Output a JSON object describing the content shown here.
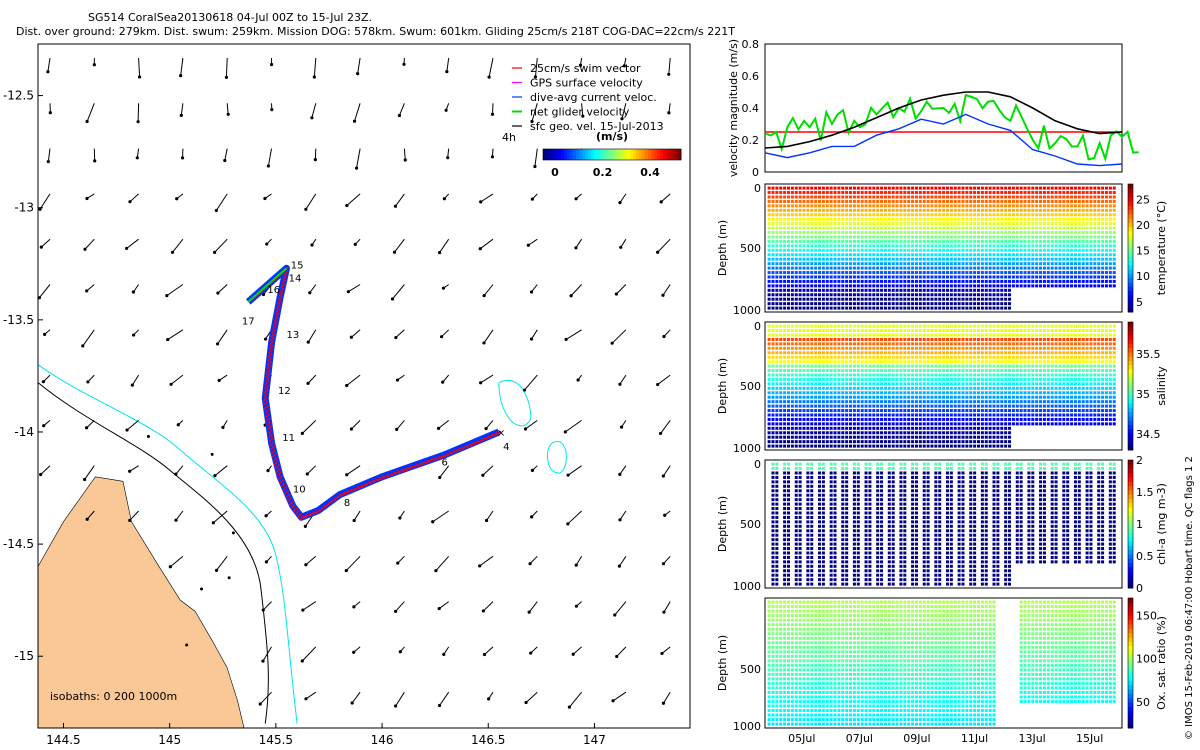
{
  "header": {
    "line1": "SG514 CoralSea20130618 04-Jul 00Z to 15-Jul 23Z.",
    "line2": "Dist. over ground: 279km. Dist. swum: 259km. Mission DOG: 578km. Swum: 601km. Gliding 25cm/s 218T COG-DAC=22cm/s 221T"
  },
  "copyright": "© IMOS 15-Feb-2019 06:47:00 Hobart time. QC flags 1  2",
  "colors": {
    "land": "#f9c896",
    "isobath200": "#00e5ee",
    "isobath1000": "#000000",
    "swim": "#ff0000",
    "net": "#00dd00",
    "dac": "#0033ff",
    "gps": "#ff00ff"
  },
  "chart_data": [
    {
      "type": "scatter",
      "name": "map",
      "xticks": [
        "144.5",
        "145",
        "145.5",
        "146",
        "146.5",
        "147"
      ],
      "yticks": [
        "-12.5",
        "-13",
        "-13.5",
        "-14",
        "-14.5",
        "-15"
      ],
      "xlim": [
        144.38,
        147.45
      ],
      "ylim": [
        -15.32,
        -12.27
      ],
      "legend": [
        "25cm/s swim vector",
        "GPS surface velocity",
        "dive-avg current veloc.",
        "net glider velocity",
        "sfc geo. vel. 15-Jul-2013"
      ],
      "legend_placement": "top-right",
      "scale_label": "4h",
      "colorbar_title": "(m/s)",
      "colorbar_ticks": [
        "0",
        "0.2",
        "0.4"
      ],
      "isobath_label": "isobaths: 0   200  1000m",
      "track": [
        [
          146.55,
          -14.0
        ],
        [
          146.3,
          -14.1
        ],
        [
          146.0,
          -14.2
        ],
        [
          145.8,
          -14.28
        ],
        [
          145.7,
          -14.35
        ],
        [
          145.62,
          -14.38
        ],
        [
          145.58,
          -14.33
        ],
        [
          145.52,
          -14.2
        ],
        [
          145.48,
          -14.05
        ],
        [
          145.45,
          -13.85
        ],
        [
          145.48,
          -13.6
        ],
        [
          145.52,
          -13.4
        ],
        [
          145.55,
          -13.27
        ],
        [
          145.37,
          -13.42
        ]
      ],
      "day_labels": [
        {
          "text": "4",
          "lon": 146.57,
          "lat": -14.08
        },
        {
          "text": "6",
          "lon": 146.28,
          "lat": -14.15
        },
        {
          "text": "8",
          "lon": 145.82,
          "lat": -14.33
        },
        {
          "text": "10",
          "lon": 145.58,
          "lat": -14.27
        },
        {
          "text": "11",
          "lon": 145.53,
          "lat": -14.04
        },
        {
          "text": "12",
          "lon": 145.51,
          "lat": -13.83
        },
        {
          "text": "13",
          "lon": 145.55,
          "lat": -13.58
        },
        {
          "text": "14",
          "lon": 145.56,
          "lat": -13.33
        },
        {
          "text": "15",
          "lon": 145.57,
          "lat": -13.27
        },
        {
          "text": "16",
          "lon": 145.46,
          "lat": -13.38
        },
        {
          "text": "17",
          "lon": 145.34,
          "lat": -13.52
        }
      ]
    },
    {
      "type": "line",
      "name": "velocity",
      "ylabel": "velocity magnitude (m/s)",
      "ylim": [
        0,
        0.8
      ],
      "yticks": [
        "0",
        "0.2",
        "0.4",
        "0.6",
        "0.8"
      ],
      "swim_speed": 0.25,
      "geo_velocity": [
        0.15,
        0.16,
        0.19,
        0.23,
        0.28,
        0.34,
        0.4,
        0.45,
        0.48,
        0.5,
        0.5,
        0.47,
        0.4,
        0.32,
        0.27,
        0.24,
        0.25
      ],
      "dac": [
        0.12,
        0.09,
        0.12,
        0.16,
        0.16,
        0.23,
        0.27,
        0.33,
        0.3,
        0.36,
        0.3,
        0.26,
        0.14,
        0.1,
        0.05,
        0.04,
        0.05
      ],
      "net": [
        0.24,
        0.28,
        0.28,
        0.3,
        0.32,
        0.36,
        0.4,
        0.38,
        0.4,
        0.48,
        0.44,
        0.32,
        0.2,
        0.18,
        0.16,
        0.18,
        0.22
      ]
    },
    {
      "type": "heatmap",
      "name": "temperature",
      "ylabel": "Depth (m)",
      "yticks": [
        "0",
        "500",
        "1000"
      ],
      "cbar_label": "temperature (°C)",
      "cbar_ticks": [
        "5",
        "10",
        "15",
        "20",
        "25"
      ],
      "cbar_range": [
        3,
        28
      ]
    },
    {
      "type": "heatmap",
      "name": "salinity",
      "ylabel": "Depth (m)",
      "yticks": [
        "0",
        "500",
        "1000"
      ],
      "cbar_label": "salinity",
      "cbar_ticks": [
        "34.5",
        "35",
        "35.5"
      ],
      "cbar_range": [
        34.3,
        35.9
      ]
    },
    {
      "type": "heatmap",
      "name": "chla",
      "ylabel": "Depth (m)",
      "yticks": [
        "0",
        "500",
        "1000"
      ],
      "cbar_label": "chl-a (mg m-3)",
      "cbar_ticks": [
        "0",
        "0.5",
        "1",
        "1.5",
        "2"
      ],
      "cbar_range": [
        0,
        2
      ]
    },
    {
      "type": "heatmap",
      "name": "oxygen",
      "ylabel": "Depth (m)",
      "yticks": [
        "500",
        "1000"
      ],
      "cbar_label": "Ox. sat. ratio (%)",
      "cbar_ticks": [
        "50",
        "100",
        "150"
      ],
      "cbar_range": [
        20,
        170
      ]
    }
  ],
  "time_axis": {
    "ticks": [
      "05Jul",
      "07Jul",
      "09Jul",
      "11Jul",
      "13Jul",
      "15Jul"
    ]
  }
}
